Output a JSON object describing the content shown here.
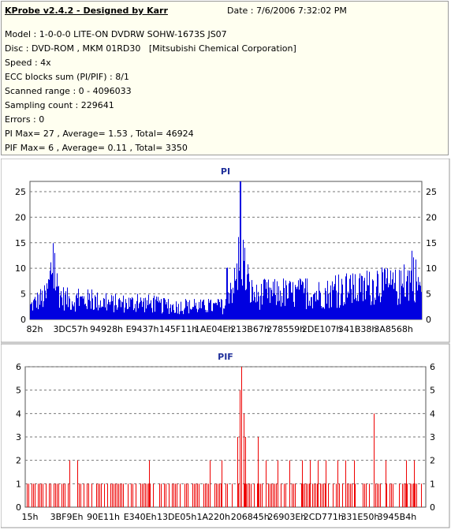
{
  "header": {
    "title": "KProbe v2.4.2 - Designed by Karr",
    "date": "Date : 7/6/2006 7:32:02 PM"
  },
  "info_lines": [
    "Model : 1-0-0-0 LITE-ON DVDRW SOHW-1673S JS07",
    "Disc : DVD-ROM , MKM 01RD30   [Mitsubishi Chemical Corporation]",
    "Speed : 4x",
    "ECC blocks sum (PI/PIF) : 8/1",
    "Scanned range : 0 - 4096033",
    "Sampling count : 229641",
    "Errors : 0",
    "PI Max= 27 , Average= 1.53 , Total= 46924",
    "PIF Max= 6 , Average= 0.11 , Total= 3350"
  ],
  "colors": {
    "pi_bar": "#0000e0",
    "pif_bar": "#ee0000",
    "grid": "#777777",
    "title": "#1f2f9a"
  },
  "chart_data": [
    {
      "type": "bar",
      "title": "PI",
      "xlabel": "",
      "ylabel": "",
      "ylim": [
        0,
        27
      ],
      "y_ticks": [
        0,
        5,
        10,
        15,
        20,
        25
      ],
      "x_ticks": [
        "82h",
        "3DC57h",
        "94928h",
        "E9437h",
        "145F11h",
        "1AE04Eh",
        "213B67h",
        "278559h",
        "2DE107h",
        "341B38h",
        "3A8568h"
      ],
      "grid": "dashed horizontal",
      "max": 27,
      "average": 1.53,
      "total": 46924,
      "envelope": [
        [
          0,
          4
        ],
        [
          0.02,
          6
        ],
        [
          0.04,
          7
        ],
        [
          0.05,
          12
        ],
        [
          0.055,
          17
        ],
        [
          0.06,
          14
        ],
        [
          0.07,
          10
        ],
        [
          0.08,
          7
        ],
        [
          0.1,
          6
        ],
        [
          0.15,
          6
        ],
        [
          0.2,
          5
        ],
        [
          0.25,
          5
        ],
        [
          0.3,
          5
        ],
        [
          0.35,
          4
        ],
        [
          0.4,
          4
        ],
        [
          0.45,
          4
        ],
        [
          0.5,
          4
        ],
        [
          0.5,
          10
        ],
        [
          0.53,
          11
        ],
        [
          0.535,
          27
        ],
        [
          0.54,
          22
        ],
        [
          0.55,
          14
        ],
        [
          0.56,
          9
        ],
        [
          0.58,
          7
        ],
        [
          0.6,
          8
        ],
        [
          0.65,
          8
        ],
        [
          0.7,
          8
        ],
        [
          0.75,
          8
        ],
        [
          0.8,
          9
        ],
        [
          0.85,
          9
        ],
        [
          0.87,
          10
        ],
        [
          0.89,
          12
        ],
        [
          0.9,
          10
        ],
        [
          0.95,
          10
        ],
        [
          0.98,
          14
        ],
        [
          1.0,
          9
        ]
      ]
    },
    {
      "type": "bar",
      "title": "PIF",
      "xlabel": "",
      "ylabel": "",
      "ylim": [
        0,
        6
      ],
      "y_ticks": [
        0,
        1,
        2,
        3,
        4,
        5,
        6
      ],
      "x_ticks": [
        "15h",
        "3BF9Eh",
        "90E11h",
        "E340Eh",
        "13DE05h",
        "1A220h",
        "206845h",
        "26903Eh",
        "2CD771h",
        "331E50h",
        "3945B4h"
      ],
      "grid": "dashed horizontal",
      "max": 6,
      "average": 0.11,
      "total": 3350,
      "spikes": [
        [
          0.11,
          2
        ],
        [
          0.13,
          2
        ],
        [
          0.31,
          2
        ],
        [
          0.46,
          2
        ],
        [
          0.49,
          2
        ],
        [
          0.53,
          3
        ],
        [
          0.535,
          5
        ],
        [
          0.54,
          6
        ],
        [
          0.545,
          4
        ],
        [
          0.55,
          3
        ],
        [
          0.58,
          3
        ],
        [
          0.6,
          2
        ],
        [
          0.63,
          2
        ],
        [
          0.66,
          2
        ],
        [
          0.69,
          2
        ],
        [
          0.71,
          2
        ],
        [
          0.73,
          2
        ],
        [
          0.75,
          2
        ],
        [
          0.78,
          2
        ],
        [
          0.8,
          2
        ],
        [
          0.82,
          2
        ],
        [
          0.87,
          4
        ],
        [
          0.9,
          2
        ],
        [
          0.95,
          2
        ],
        [
          0.97,
          2
        ]
      ]
    }
  ]
}
